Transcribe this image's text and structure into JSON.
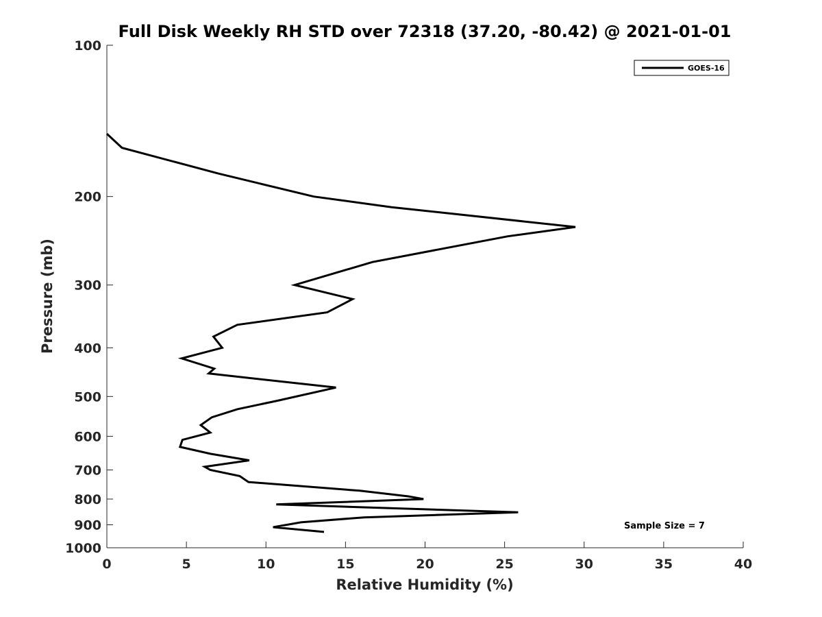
{
  "chart_data": {
    "type": "line",
    "title": "Full Disk Weekly RH STD over 72318 (37.20, -80.42) @ 2021-01-01",
    "xlabel": "Relative Humidity (%)",
    "ylabel": "Pressure (mb)",
    "xlim": [
      0,
      40
    ],
    "ylim": [
      100,
      1000
    ],
    "yscale": "log",
    "yreversed": true,
    "xticks": [
      0,
      5,
      10,
      15,
      20,
      25,
      30,
      35,
      40
    ],
    "yticks": [
      100,
      200,
      300,
      400,
      500,
      600,
      700,
      800,
      900,
      1000
    ],
    "grid": false,
    "legend_position": "top-right",
    "series": [
      {
        "name": "GOES-16",
        "color": "#000000",
        "x": [
          0.0,
          0.95,
          7.0,
          13.0,
          17.9,
          29.45,
          25.2,
          16.7,
          11.8,
          15.45,
          13.85,
          8.2,
          6.7,
          7.25,
          4.7,
          6.75,
          6.4,
          14.4,
          10.7,
          8.2,
          6.6,
          5.9,
          6.5,
          4.75,
          4.6,
          6.5,
          8.95,
          6.15,
          6.5,
          8.35,
          8.9,
          15.9,
          18.95,
          19.9,
          10.65,
          25.85,
          16.15,
          12.2,
          10.45,
          13.65
        ],
        "y": [
          150,
          160,
          180,
          200,
          210,
          230,
          240,
          270,
          300,
          320,
          340,
          360,
          380,
          400,
          420,
          440,
          450,
          480,
          510,
          530,
          550,
          570,
          590,
          610,
          630,
          650,
          670,
          690,
          700,
          720,
          740,
          770,
          790,
          800,
          820,
          850,
          870,
          890,
          910,
          930
        ]
      }
    ],
    "annotations": [
      "Sample Size = 7"
    ]
  }
}
